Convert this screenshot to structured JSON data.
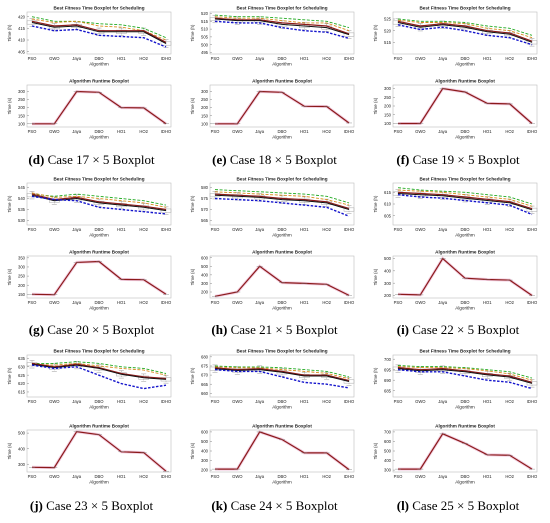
{
  "colors": {
    "main": "#8B1A1A",
    "green": "#22AA22",
    "orange": "#D98A1C",
    "blue": "#1515CC",
    "black": "#111111",
    "whisker": "#9A9A9A",
    "pink": "#E8A6C8"
  },
  "figure_titles": {
    "fitness": "Best Fitness Time Boxplot for Scheduling",
    "runtime": "Algorithm Runtime Boxplot"
  },
  "axis": {
    "xlabel": "Algorithm",
    "fitness_ylabel": "Time (h)",
    "runtime_ylabel": "Time (s)"
  },
  "captions": [
    {
      "letter": "(d)",
      "text": "Case 17 × 5 Boxplot"
    },
    {
      "letter": "(e)",
      "text": "Case 18 × 5 Boxplot"
    },
    {
      "letter": "(f)",
      "text": "Case 19 × 5 Boxplot"
    },
    {
      "letter": "(g)",
      "text": "Case 20 × 5 Boxplot"
    },
    {
      "letter": "(h)",
      "text": "Case 21 × 5 Boxplot"
    },
    {
      "letter": "(i)",
      "text": "Case 22 × 5 Boxplot"
    },
    {
      "letter": "(j)",
      "text": "Case 23 × 5 Boxplot"
    },
    {
      "letter": "(k)",
      "text": "Case 24 × 5 Boxplot"
    },
    {
      "letter": "(l)",
      "text": "Case 25 × 5 Boxplot"
    }
  ],
  "chart_data": [
    {
      "type": "line",
      "panel": "d-fitness",
      "title": "Best Fitness Time Boxplot for Scheduling",
      "xlabel": "Algorithm",
      "ylabel": "Time (h)",
      "categories": [
        "PSO",
        "GWO",
        "Jaya",
        "DBO",
        "HO1",
        "HO2",
        "IDHO"
      ],
      "ylim": [
        404,
        422
      ],
      "yticks": [
        405,
        410,
        415,
        420
      ],
      "lines": {
        "green": [
          420,
          418,
          418,
          417,
          416.5,
          415,
          411
        ],
        "orange": [
          419,
          417.5,
          418,
          416,
          415.5,
          414,
          410
        ],
        "main": [
          418,
          416,
          416.5,
          414,
          414,
          414,
          409
        ],
        "black": [
          417.5,
          415.5,
          416,
          413.5,
          413.5,
          413.5,
          408.5
        ],
        "blue": [
          416,
          414,
          414.5,
          412,
          411.5,
          411,
          407
        ]
      }
    },
    {
      "type": "line",
      "panel": "e-fitness",
      "title": "Best Fitness Time Boxplot for Scheduling",
      "xlabel": "Algorithm",
      "ylabel": "Time (h)",
      "categories": [
        "PSO",
        "GWO",
        "Jaya",
        "DBO",
        "HO1",
        "HO2",
        "IDHO"
      ],
      "ylim": [
        494,
        521
      ],
      "yticks": [
        495,
        500,
        505,
        510,
        515,
        520
      ],
      "lines": {
        "green": [
          519,
          518,
          518,
          517,
          516,
          515,
          511
        ],
        "orange": [
          518,
          517,
          517,
          515.5,
          514,
          514,
          509
        ],
        "main": [
          517,
          516,
          516,
          514,
          513,
          512,
          507
        ],
        "black": [
          516.5,
          515.5,
          515.5,
          513,
          512,
          511,
          506.5
        ],
        "blue": [
          515,
          514,
          514,
          511,
          509,
          508,
          504
        ]
      }
    },
    {
      "type": "line",
      "panel": "f-fitness",
      "title": "Best Fitness Time Boxplot for Scheduling",
      "xlabel": "Algorithm",
      "ylabel": "Time (h)",
      "categories": [
        "PSO",
        "GWO",
        "Jaya",
        "DBO",
        "HO1",
        "HO2",
        "IDHO"
      ],
      "ylim": [
        510,
        528
      ],
      "yticks": [
        515,
        520,
        525
      ],
      "lines": {
        "green": [
          525,
          524,
          524,
          523.5,
          522,
          521,
          518
        ],
        "orange": [
          524.5,
          523.5,
          523.5,
          523,
          521,
          520,
          517
        ],
        "main": [
          524,
          522,
          523,
          522,
          520,
          519,
          515.5
        ],
        "black": [
          523.5,
          521.5,
          522.5,
          521.5,
          519.5,
          518.5,
          515
        ],
        "blue": [
          522.5,
          520.5,
          521.5,
          520,
          518,
          517,
          514
        ]
      }
    },
    {
      "type": "line",
      "panel": "g-fitness",
      "title": "Best Fitness Time Boxplot for Scheduling",
      "xlabel": "Algorithm",
      "ylabel": "Time (h)",
      "categories": [
        "PSO",
        "GWO",
        "Jaya",
        "DBO",
        "HO1",
        "HO2",
        "IDHO"
      ],
      "ylim": [
        528,
        547
      ],
      "yticks": [
        530,
        535,
        540,
        545
      ],
      "lines": {
        "green": [
          542,
          541,
          542,
          541,
          540,
          539,
          537
        ],
        "orange": [
          542.5,
          540.5,
          541,
          540,
          539,
          538,
          536
        ],
        "main": [
          542,
          539.5,
          540.5,
          538.5,
          537.5,
          536.5,
          535
        ],
        "black": [
          541.5,
          539,
          540,
          538,
          537,
          536,
          534.5
        ],
        "blue": [
          541,
          539.5,
          539,
          536,
          535,
          534,
          533
        ]
      }
    },
    {
      "type": "line",
      "panel": "h-fitness",
      "title": "Best Fitness Time Boxplot for Scheduling",
      "xlabel": "Algorithm",
      "ylabel": "Time (h)",
      "categories": [
        "PSO",
        "GWO",
        "Jaya",
        "DBO",
        "HO1",
        "HO2",
        "IDHO"
      ],
      "ylim": [
        563,
        582
      ],
      "yticks": [
        565,
        570,
        575,
        580
      ],
      "lines": {
        "green": [
          579,
          578.5,
          578,
          577.5,
          577,
          576,
          573
        ],
        "orange": [
          578,
          577.5,
          577,
          576.5,
          576,
          574.5,
          572
        ],
        "main": [
          577,
          576.5,
          576,
          575,
          574.5,
          573.5,
          570.5
        ],
        "black": [
          576.5,
          576,
          575.5,
          574.5,
          574,
          573,
          570
        ],
        "blue": [
          575,
          574.5,
          574,
          573,
          572,
          571,
          567
        ]
      }
    },
    {
      "type": "line",
      "panel": "i-fitness",
      "title": "Best Fitness Time Boxplot for Scheduling",
      "xlabel": "Algorithm",
      "ylabel": "Time (h)",
      "categories": [
        "PSO",
        "GWO",
        "Jaya",
        "DBO",
        "HO1",
        "HO2",
        "IDHO"
      ],
      "ylim": [
        601,
        619
      ],
      "yticks": [
        605,
        610,
        615
      ],
      "lines": {
        "green": [
          617,
          616,
          615.5,
          615,
          614,
          613,
          610
        ],
        "orange": [
          616,
          615.5,
          615,
          614,
          613,
          612,
          609
        ],
        "main": [
          615,
          614.5,
          614,
          613,
          612,
          611,
          608
        ],
        "black": [
          614.5,
          614,
          613.5,
          612.5,
          611.5,
          610.5,
          607.5
        ],
        "blue": [
          614,
          613,
          612.5,
          611.5,
          610.5,
          609.5,
          605.5
        ]
      }
    },
    {
      "type": "line",
      "panel": "j-fitness",
      "title": "Best Fitness Time Boxplot for Scheduling",
      "xlabel": "Algorithm",
      "ylabel": "Time (h)",
      "categories": [
        "PSO",
        "GWO",
        "Jaya",
        "DBO",
        "HO1",
        "HO2",
        "IDHO"
      ],
      "ylim": [
        612,
        637
      ],
      "yticks": [
        615,
        620,
        625,
        630,
        635
      ],
      "lines": {
        "green": [
          632,
          632,
          633,
          632,
          630,
          629,
          626
        ],
        "orange": [
          631.5,
          631,
          632,
          630.5,
          629,
          628,
          625
        ],
        "main": [
          632,
          630,
          631.5,
          629.5,
          626,
          624,
          623
        ],
        "black": [
          631.5,
          629.5,
          631,
          629,
          625.5,
          623.5,
          622.5
        ],
        "blue": [
          631,
          629,
          630,
          625,
          620,
          617,
          619
        ]
      }
    },
    {
      "type": "line",
      "panel": "k-fitness",
      "title": "Best Fitness Time Boxplot for Scheduling",
      "xlabel": "Algorithm",
      "ylabel": "Time (h)",
      "categories": [
        "PSO",
        "GWO",
        "Jaya",
        "DBO",
        "HO1",
        "HO2",
        "IDHO"
      ],
      "ylim": [
        658,
        681
      ],
      "yticks": [
        660,
        665,
        670,
        675,
        680
      ],
      "lines": {
        "green": [
          675,
          674.5,
          674.5,
          674,
          673,
          672,
          669
        ],
        "orange": [
          674.5,
          674,
          674,
          673,
          672,
          671,
          668
        ],
        "main": [
          674,
          673,
          673.5,
          672,
          670,
          670,
          667
        ],
        "black": [
          673.5,
          672.5,
          673,
          671.5,
          669.5,
          669.5,
          666.5
        ],
        "blue": [
          673,
          672,
          672,
          669,
          666,
          665,
          663
        ]
      }
    },
    {
      "type": "line",
      "panel": "l-fitness",
      "title": "Best Fitness Time Boxplot for Scheduling",
      "xlabel": "Algorithm",
      "ylabel": "Time (h)",
      "categories": [
        "PSO",
        "GWO",
        "Jaya",
        "DBO",
        "HO1",
        "HO2",
        "IDHO"
      ],
      "ylim": [
        682,
        702
      ],
      "yticks": [
        685,
        690,
        695,
        700
      ],
      "lines": {
        "green": [
          697,
          696.5,
          696.5,
          696,
          695,
          694,
          691
        ],
        "orange": [
          696.5,
          696,
          696,
          695.5,
          694.5,
          693,
          690
        ],
        "main": [
          696,
          695,
          695.5,
          694.5,
          693,
          692,
          689
        ],
        "black": [
          695.5,
          694.5,
          695,
          694,
          692.5,
          691.5,
          688.5
        ],
        "blue": [
          695,
          694,
          694,
          692,
          690,
          689,
          686
        ]
      }
    },
    {
      "type": "line",
      "panel": "d-runtime",
      "title": "Algorithm Runtime Boxplot",
      "xlabel": "Algorithm",
      "ylabel": "Time (s)",
      "categories": [
        "PSO",
        "GWO",
        "Jaya",
        "DBO",
        "HO1",
        "HO2",
        "IDHO"
      ],
      "ylim": [
        80,
        340
      ],
      "yticks": [
        100,
        150,
        200,
        250,
        300
      ],
      "main": [
        100,
        100,
        300,
        295,
        200,
        198,
        100
      ]
    },
    {
      "type": "line",
      "panel": "e-runtime",
      "title": "Algorithm Runtime Boxplot",
      "xlabel": "Algorithm",
      "ylabel": "Time (s)",
      "categories": [
        "PSO",
        "GWO",
        "Jaya",
        "DBO",
        "HO1",
        "HO2",
        "IDHO"
      ],
      "ylim": [
        80,
        340
      ],
      "yticks": [
        100,
        150,
        200,
        250,
        300
      ],
      "main": [
        100,
        100,
        300,
        295,
        208,
        207,
        105
      ]
    },
    {
      "type": "line",
      "panel": "f-runtime",
      "title": "Algorithm Runtime Boxplot",
      "xlabel": "Algorithm",
      "ylabel": "Time (s)",
      "categories": [
        "PSO",
        "GWO",
        "Jaya",
        "DBO",
        "HO1",
        "HO2",
        "IDHO"
      ],
      "ylim": [
        80,
        320
      ],
      "yticks": [
        100,
        150,
        200,
        250,
        300
      ],
      "main": [
        100,
        100,
        300,
        280,
        215,
        212,
        100
      ]
    },
    {
      "type": "line",
      "panel": "g-runtime",
      "title": "Algorithm Runtime Boxplot",
      "xlabel": "Algorithm",
      "ylabel": "Time (s)",
      "categories": [
        "PSO",
        "GWO",
        "Jaya",
        "DBO",
        "HO1",
        "HO2",
        "IDHO"
      ],
      "ylim": [
        130,
        360
      ],
      "yticks": [
        150,
        200,
        250,
        300,
        350
      ],
      "main": [
        150,
        148,
        325,
        330,
        232,
        230,
        150
      ]
    },
    {
      "type": "line",
      "panel": "h-runtime",
      "title": "Algorithm Runtime Boxplot",
      "xlabel": "Algorithm",
      "ylabel": "Time (s)",
      "categories": [
        "PSO",
        "GWO",
        "Jaya",
        "DBO",
        "HO1",
        "HO2",
        "IDHO"
      ],
      "ylim": [
        130,
        620
      ],
      "yticks": [
        200,
        300,
        400,
        500,
        600
      ],
      "main": [
        150,
        200,
        500,
        310,
        300,
        290,
        160
      ]
    },
    {
      "type": "line",
      "panel": "i-runtime",
      "title": "Algorithm Runtime Boxplot",
      "xlabel": "Algorithm",
      "ylabel": "Time (s)",
      "categories": [
        "PSO",
        "GWO",
        "Jaya",
        "DBO",
        "HO1",
        "HO2",
        "IDHO"
      ],
      "ylim": [
        180,
        520
      ],
      "yticks": [
        200,
        300,
        400,
        500
      ],
      "main": [
        210,
        205,
        500,
        340,
        330,
        325,
        200
      ]
    },
    {
      "type": "line",
      "panel": "j-runtime",
      "title": "Algorithm Runtime Boxplot",
      "xlabel": "Algorithm",
      "ylabel": "Time (s)",
      "categories": [
        "PSO",
        "GWO",
        "Jaya",
        "DBO",
        "HO1",
        "HO2",
        "IDHO"
      ],
      "ylim": [
        250,
        520
      ],
      "yticks": [
        300,
        400,
        500
      ],
      "main": [
        280,
        278,
        510,
        490,
        380,
        375,
        255
      ]
    },
    {
      "type": "line",
      "panel": "k-runtime",
      "title": "Algorithm Runtime Boxplot",
      "xlabel": "Algorithm",
      "ylabel": "Time (s)",
      "categories": [
        "PSO",
        "GWO",
        "Jaya",
        "DBO",
        "HO1",
        "HO2",
        "IDHO"
      ],
      "ylim": [
        180,
        620
      ],
      "yticks": [
        200,
        300,
        400,
        500,
        600
      ],
      "main": [
        210,
        210,
        600,
        520,
        380,
        380,
        205
      ]
    },
    {
      "type": "line",
      "panel": "l-runtime",
      "title": "Algorithm Runtime Boxplot",
      "xlabel": "Algorithm",
      "ylabel": "Time (s)",
      "categories": [
        "PSO",
        "GWO",
        "Jaya",
        "DBO",
        "HO1",
        "HO2",
        "IDHO"
      ],
      "ylim": [
        280,
        720
      ],
      "yticks": [
        300,
        400,
        500,
        600,
        700
      ],
      "main": [
        310,
        310,
        680,
        580,
        460,
        455,
        310
      ]
    }
  ]
}
